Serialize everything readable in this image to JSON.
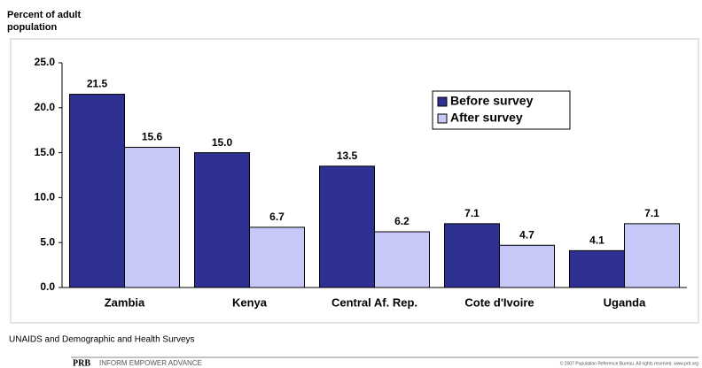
{
  "chart_data": {
    "type": "bar",
    "ylabel": [
      "Percent of adult",
      "population"
    ],
    "categories": [
      "Zambia",
      "Kenya",
      "Central Af. Rep.",
      "Cote d'Ivoire",
      "Uganda"
    ],
    "series": [
      {
        "name": "Before survey",
        "color": "#2e3192",
        "values": [
          21.5,
          15.0,
          13.5,
          7.1,
          4.1
        ],
        "value_labels": [
          "21.5",
          "15.0",
          "13.5",
          "7.1",
          "4.1"
        ]
      },
      {
        "name": "After survey",
        "color": "#c8c8f8",
        "values": [
          15.6,
          6.7,
          6.2,
          4.7,
          7.1
        ],
        "value_labels": [
          "15.6",
          "6.7",
          "6.2",
          "4.7",
          "7.1"
        ]
      }
    ],
    "ylim": [
      0,
      25
    ],
    "yticks": [
      {
        "value": 0,
        "label": "0.0"
      },
      {
        "value": 5,
        "label": "5.0"
      },
      {
        "value": 10,
        "label": "10.0"
      },
      {
        "value": 15,
        "label": "15.0"
      },
      {
        "value": 20,
        "label": "20.0"
      },
      {
        "value": 25,
        "label": "25.0"
      }
    ],
    "legend": "upper-right",
    "source": "UNAIDS and Demographic and Health Surveys"
  },
  "footer": {
    "logo": "PRB",
    "tagline": "INFORM  EMPOWER  ADVANCE",
    "copyright": "© 2007 Population Reference Bureau. All rights reserved. www.prb.org"
  }
}
